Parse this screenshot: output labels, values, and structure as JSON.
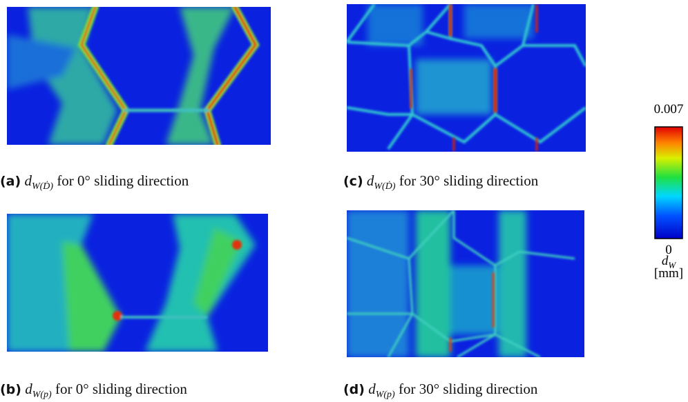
{
  "panels": [
    {
      "label": "(a)",
      "symbol": "d",
      "subscript": "W(Ḋ)",
      "text": "for 0° sliding direction"
    },
    {
      "label": "(b)",
      "symbol": "d",
      "subscript": "W(p)",
      "text": "for 0° sliding direction"
    },
    {
      "label": "(c)",
      "symbol": "d",
      "subscript": "W(Ḋ)",
      "text": "for 30° sliding direction"
    },
    {
      "label": "(d)",
      "symbol": "d",
      "subscript": "W(p)",
      "text": "for 30° sliding direction"
    }
  ],
  "colorbar": {
    "max": "0.007",
    "min": "0",
    "symbol": "d",
    "subscript": "W",
    "unit": "[mm]"
  }
}
